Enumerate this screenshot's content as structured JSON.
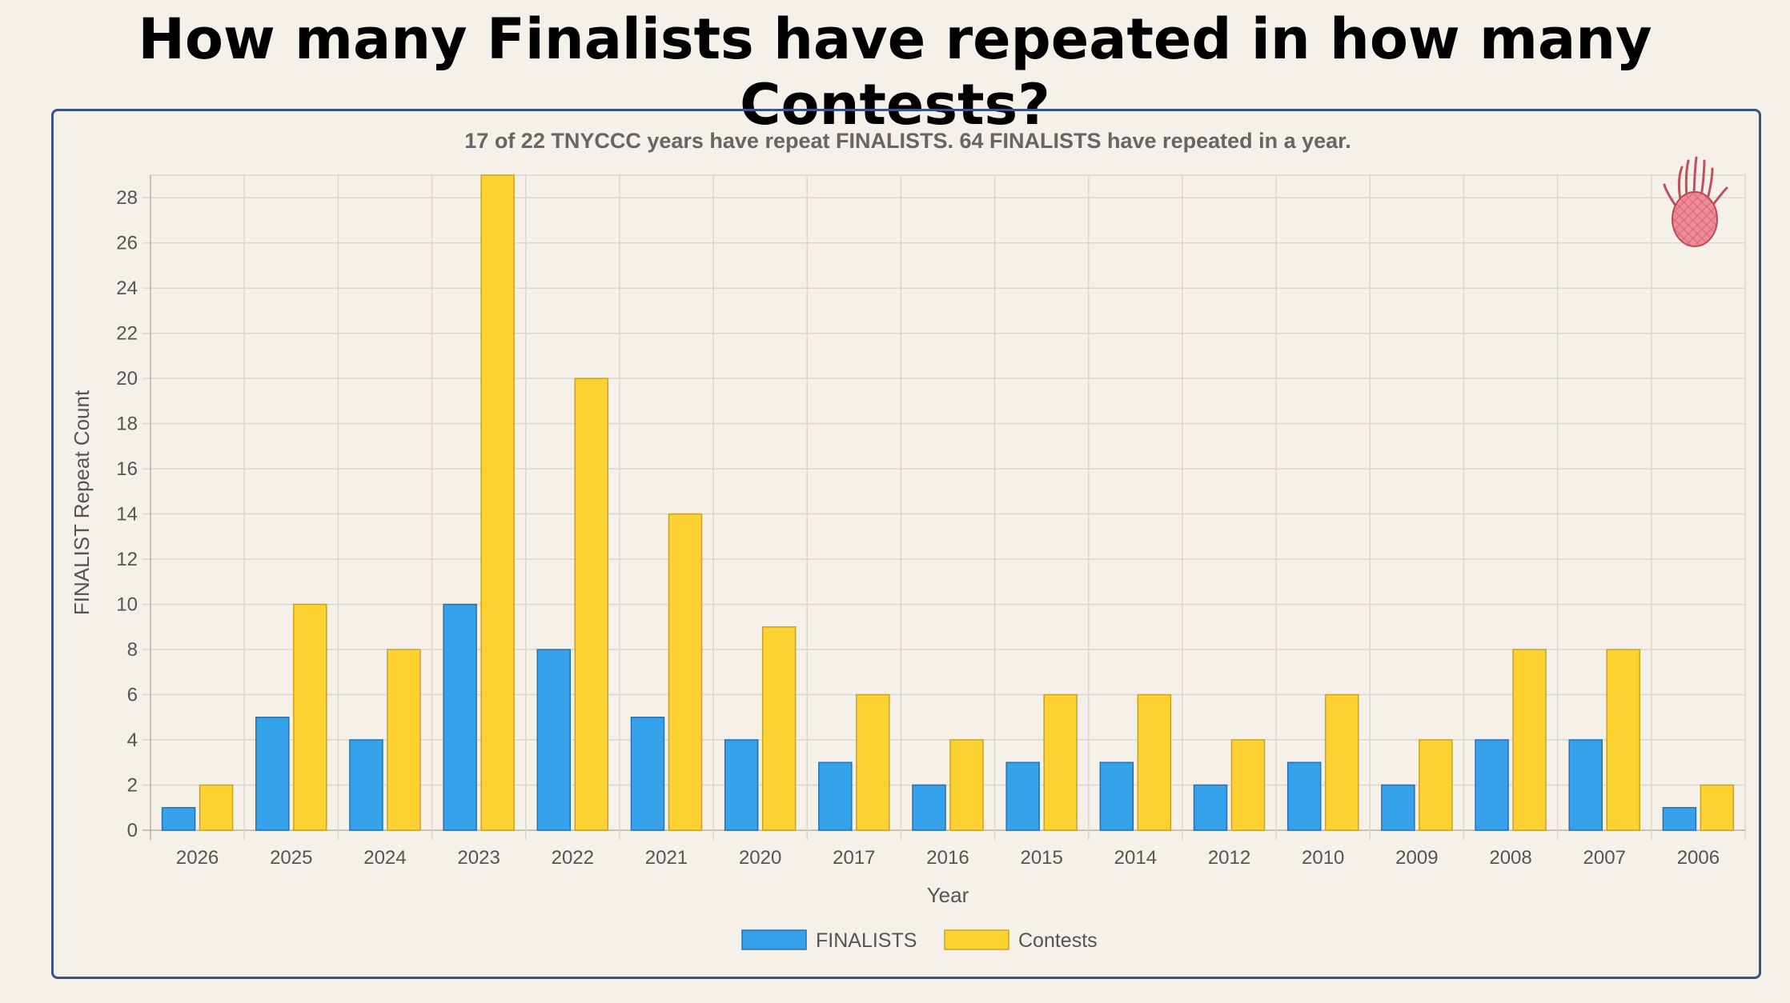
{
  "page_title": "How many Finalists have repeated in how many Contests?",
  "chart_data": {
    "type": "bar",
    "subtitle": "17 of 22 TNYCCC years have repeat FINALISTS. 64 FINALISTS have repeated in a year.",
    "xlabel": "Year",
    "ylabel": "FINALIST Repeat Count",
    "categories": [
      "2026",
      "2025",
      "2024",
      "2023",
      "2022",
      "2021",
      "2020",
      "2017",
      "2016",
      "2015",
      "2014",
      "2012",
      "2010",
      "2009",
      "2008",
      "2007",
      "2006"
    ],
    "series": [
      {
        "name": "FINALISTS",
        "color": "#36a2eb",
        "border": "#2a6fb0",
        "values": [
          1,
          5,
          4,
          10,
          8,
          5,
          4,
          3,
          2,
          3,
          3,
          2,
          3,
          2,
          4,
          4,
          1
        ]
      },
      {
        "name": "Contests",
        "color": "#ffd233",
        "border": "#c9a320",
        "values": [
          2,
          10,
          8,
          29,
          20,
          14,
          9,
          6,
          4,
          6,
          6,
          4,
          6,
          4,
          8,
          8,
          2
        ]
      }
    ],
    "ylim": [
      0,
      29
    ],
    "yticks": [
      0,
      2,
      4,
      6,
      8,
      10,
      12,
      14,
      16,
      18,
      20,
      22,
      24,
      26,
      28
    ],
    "grid": true,
    "legend_position": "bottom",
    "decoration_icon": "pineapple-icon"
  }
}
